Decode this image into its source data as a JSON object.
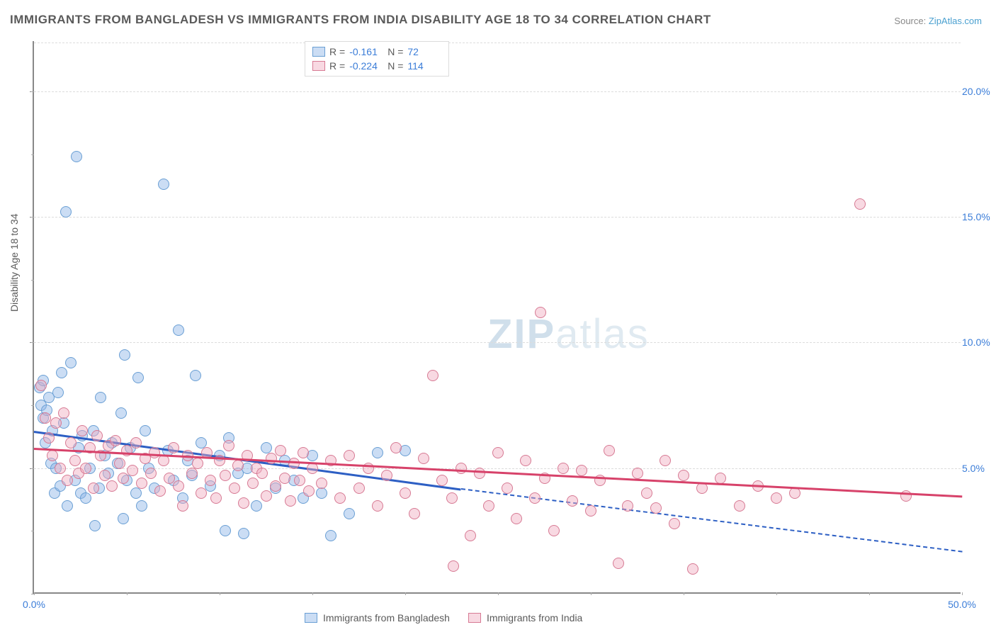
{
  "title": "IMMIGRANTS FROM BANGLADESH VS IMMIGRANTS FROM INDIA DISABILITY AGE 18 TO 34 CORRELATION CHART",
  "source_label": "Source:",
  "source_link": "ZipAtlas.com",
  "yaxis_label": "Disability Age 18 to 34",
  "watermark_zip": "ZIP",
  "watermark_atlas": "atlas",
  "chart": {
    "type": "scatter",
    "xlim": [
      0,
      50
    ],
    "ylim": [
      0,
      22
    ],
    "x_ticks": [
      0,
      50
    ],
    "x_tick_labels": [
      "0.0%",
      "50.0%"
    ],
    "y_ticks": [
      5,
      10,
      15,
      20
    ],
    "y_tick_labels": [
      "5.0%",
      "10.0%",
      "15.0%",
      "20.0%"
    ],
    "x_minor_step": 5,
    "y_minor_step": 2.5,
    "grid_color": "#dcdcdc",
    "background_color": "#ffffff",
    "point_radius": 8,
    "point_border_width": 1.2,
    "series": [
      {
        "name": "Immigrants from Bangladesh",
        "fill_color": "rgba(140,180,230,0.45)",
        "border_color": "#6a9fd4",
        "trend_color": "#2d5fc4",
        "R": "-0.161",
        "N": "72",
        "trend": {
          "x1": 0,
          "y1": 6.5,
          "x2": 23,
          "y2": 4.2,
          "dash_x2": 50,
          "dash_y2": 1.7
        },
        "points": [
          [
            0.3,
            8.2
          ],
          [
            0.4,
            7.5
          ],
          [
            0.5,
            8.5
          ],
          [
            0.5,
            7.0
          ],
          [
            0.6,
            6.0
          ],
          [
            0.7,
            7.3
          ],
          [
            0.8,
            7.8
          ],
          [
            0.9,
            5.2
          ],
          [
            1.0,
            6.5
          ],
          [
            1.1,
            4.0
          ],
          [
            1.2,
            5.0
          ],
          [
            1.3,
            8.0
          ],
          [
            1.4,
            4.3
          ],
          [
            1.5,
            8.8
          ],
          [
            1.6,
            6.8
          ],
          [
            1.7,
            15.2
          ],
          [
            1.8,
            3.5
          ],
          [
            2.0,
            9.2
          ],
          [
            2.2,
            4.5
          ],
          [
            2.3,
            17.4
          ],
          [
            2.4,
            5.8
          ],
          [
            2.5,
            4.0
          ],
          [
            2.6,
            6.3
          ],
          [
            2.8,
            3.8
          ],
          [
            3.0,
            5.0
          ],
          [
            3.2,
            6.5
          ],
          [
            3.3,
            2.7
          ],
          [
            3.5,
            4.2
          ],
          [
            3.6,
            7.8
          ],
          [
            3.8,
            5.5
          ],
          [
            4.0,
            4.8
          ],
          [
            4.2,
            6.0
          ],
          [
            4.5,
            5.2
          ],
          [
            4.7,
            7.2
          ],
          [
            4.8,
            3.0
          ],
          [
            4.9,
            9.5
          ],
          [
            5.0,
            4.5
          ],
          [
            5.2,
            5.8
          ],
          [
            5.5,
            4.0
          ],
          [
            5.6,
            8.6
          ],
          [
            5.8,
            3.5
          ],
          [
            6.0,
            6.5
          ],
          [
            6.2,
            5.0
          ],
          [
            6.5,
            4.2
          ],
          [
            7.0,
            16.3
          ],
          [
            7.2,
            5.7
          ],
          [
            7.5,
            4.5
          ],
          [
            7.8,
            10.5
          ],
          [
            8.0,
            3.8
          ],
          [
            8.3,
            5.3
          ],
          [
            8.5,
            4.7
          ],
          [
            8.7,
            8.7
          ],
          [
            9.0,
            6.0
          ],
          [
            9.5,
            4.3
          ],
          [
            10.0,
            5.5
          ],
          [
            10.3,
            2.5
          ],
          [
            10.5,
            6.2
          ],
          [
            11.0,
            4.8
          ],
          [
            11.3,
            2.4
          ],
          [
            11.5,
            5.0
          ],
          [
            12.0,
            3.5
          ],
          [
            12.5,
            5.8
          ],
          [
            13.0,
            4.2
          ],
          [
            13.5,
            5.3
          ],
          [
            14.0,
            4.5
          ],
          [
            14.5,
            3.8
          ],
          [
            15.0,
            5.5
          ],
          [
            15.5,
            4.0
          ],
          [
            16.0,
            2.3
          ],
          [
            17.0,
            3.2
          ],
          [
            18.5,
            5.6
          ],
          [
            20.0,
            5.7
          ]
        ]
      },
      {
        "name": "Immigrants from India",
        "fill_color": "rgba(240,170,190,0.45)",
        "border_color": "#d77a94",
        "trend_color": "#d7426a",
        "R": "-0.224",
        "N": "114",
        "trend": {
          "x1": 0,
          "y1": 5.8,
          "x2": 50,
          "y2": 3.9
        },
        "points": [
          [
            0.4,
            8.3
          ],
          [
            0.6,
            7.0
          ],
          [
            0.8,
            6.2
          ],
          [
            1.0,
            5.5
          ],
          [
            1.2,
            6.8
          ],
          [
            1.4,
            5.0
          ],
          [
            1.6,
            7.2
          ],
          [
            1.8,
            4.5
          ],
          [
            2.0,
            6.0
          ],
          [
            2.2,
            5.3
          ],
          [
            2.4,
            4.8
          ],
          [
            2.6,
            6.5
          ],
          [
            2.8,
            5.0
          ],
          [
            3.0,
            5.8
          ],
          [
            3.2,
            4.2
          ],
          [
            3.4,
            6.3
          ],
          [
            3.6,
            5.5
          ],
          [
            3.8,
            4.7
          ],
          [
            4.0,
            5.9
          ],
          [
            4.2,
            4.3
          ],
          [
            4.4,
            6.1
          ],
          [
            4.6,
            5.2
          ],
          [
            4.8,
            4.6
          ],
          [
            5.0,
            5.7
          ],
          [
            5.3,
            4.9
          ],
          [
            5.5,
            6.0
          ],
          [
            5.8,
            4.4
          ],
          [
            6.0,
            5.4
          ],
          [
            6.3,
            4.8
          ],
          [
            6.5,
            5.6
          ],
          [
            6.8,
            4.1
          ],
          [
            7.0,
            5.3
          ],
          [
            7.3,
            4.6
          ],
          [
            7.5,
            5.8
          ],
          [
            7.8,
            4.3
          ],
          [
            8.0,
            3.5
          ],
          [
            8.3,
            5.5
          ],
          [
            8.5,
            4.8
          ],
          [
            8.8,
            5.2
          ],
          [
            9.0,
            4.0
          ],
          [
            9.3,
            5.6
          ],
          [
            9.5,
            4.5
          ],
          [
            9.8,
            3.8
          ],
          [
            10.0,
            5.3
          ],
          [
            10.3,
            4.7
          ],
          [
            10.5,
            5.9
          ],
          [
            10.8,
            4.2
          ],
          [
            11.0,
            5.1
          ],
          [
            11.3,
            3.6
          ],
          [
            11.5,
            5.5
          ],
          [
            11.8,
            4.4
          ],
          [
            12.0,
            5.0
          ],
          [
            12.3,
            4.8
          ],
          [
            12.5,
            3.9
          ],
          [
            12.8,
            5.4
          ],
          [
            13.0,
            4.3
          ],
          [
            13.3,
            5.7
          ],
          [
            13.5,
            4.6
          ],
          [
            13.8,
            3.7
          ],
          [
            14.0,
            5.2
          ],
          [
            14.3,
            4.5
          ],
          [
            14.5,
            5.6
          ],
          [
            14.8,
            4.1
          ],
          [
            15.0,
            5.0
          ],
          [
            15.5,
            4.4
          ],
          [
            16.0,
            5.3
          ],
          [
            16.5,
            3.8
          ],
          [
            17.0,
            5.5
          ],
          [
            17.5,
            4.2
          ],
          [
            18.0,
            5.0
          ],
          [
            18.5,
            3.5
          ],
          [
            19.0,
            4.7
          ],
          [
            19.5,
            5.8
          ],
          [
            20.0,
            4.0
          ],
          [
            20.5,
            3.2
          ],
          [
            21.0,
            5.4
          ],
          [
            21.5,
            8.7
          ],
          [
            22.0,
            4.5
          ],
          [
            22.6,
            1.1
          ],
          [
            22.5,
            3.8
          ],
          [
            23.0,
            5.0
          ],
          [
            23.5,
            2.3
          ],
          [
            24.0,
            4.8
          ],
          [
            24.5,
            3.5
          ],
          [
            25.0,
            5.6
          ],
          [
            25.5,
            4.2
          ],
          [
            26.0,
            3.0
          ],
          [
            26.5,
            5.3
          ],
          [
            27.0,
            3.8
          ],
          [
            27.3,
            11.2
          ],
          [
            27.5,
            4.6
          ],
          [
            28.0,
            2.5
          ],
          [
            28.5,
            5.0
          ],
          [
            29.0,
            3.7
          ],
          [
            29.5,
            4.9
          ],
          [
            30.0,
            3.3
          ],
          [
            30.5,
            4.5
          ],
          [
            31.0,
            5.7
          ],
          [
            31.5,
            1.2
          ],
          [
            32.0,
            3.5
          ],
          [
            32.5,
            4.8
          ],
          [
            33.0,
            4.0
          ],
          [
            33.5,
            3.4
          ],
          [
            34.0,
            5.3
          ],
          [
            34.5,
            2.8
          ],
          [
            35.0,
            4.7
          ],
          [
            35.5,
            1.0
          ],
          [
            36.0,
            4.2
          ],
          [
            37.0,
            4.6
          ],
          [
            38.0,
            3.5
          ],
          [
            39.0,
            4.3
          ],
          [
            40.0,
            3.8
          ],
          [
            41.0,
            4.0
          ],
          [
            44.5,
            15.5
          ],
          [
            47.0,
            3.9
          ]
        ]
      }
    ]
  },
  "legend_top_labels": {
    "R": "R =",
    "N": "N ="
  },
  "legend_bottom": [
    "Immigrants from Bangladesh",
    "Immigrants from India"
  ]
}
